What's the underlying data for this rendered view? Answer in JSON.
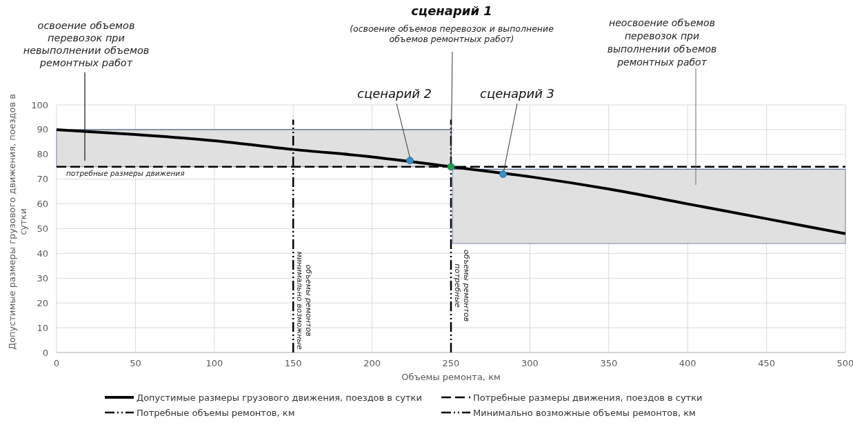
{
  "chart_data": {
    "type": "line",
    "xlabel": "Объемы ремонта, км",
    "ylabel": "Допустимые размеры грузового движения, поездов в сутки",
    "xlim": [
      0,
      500
    ],
    "xticks": [
      0,
      50,
      100,
      150,
      200,
      250,
      300,
      350,
      400,
      450,
      500
    ],
    "ylim": [
      0,
      100
    ],
    "yticks": [
      0,
      10,
      20,
      30,
      40,
      50,
      60,
      70,
      80,
      90,
      100
    ],
    "grid": true,
    "legend": "bottom",
    "marker": "none",
    "series": [
      {
        "color": "#5a6d94",
        "x": [
          0,
          250
        ],
        "values": [
          90,
          90
        ],
        "lower": [
          75,
          75
        ],
        "upper": [
          90,
          90
        ]
      },
      {
        "color": "#5a6d94",
        "x": [
          251,
          500
        ],
        "values": [
          74,
          74
        ],
        "lower": [
          44,
          44
        ],
        "upper": [
          74,
          74
        ]
      },
      {
        "name": "Допустимые размеры грузового движения, поездов в сутки",
        "color": "#000000",
        "line_style": "solid",
        "x": [
          0,
          50,
          100,
          150,
          200,
          250,
          300,
          350,
          400,
          450,
          500
        ],
        "values": [
          90,
          88,
          85.5,
          82,
          79,
          75,
          71,
          66,
          60,
          54,
          48
        ]
      },
      {
        "name": "Потребные размеры движения, поездов в сутки",
        "color": "#000000",
        "line_style": "dashed",
        "x": [
          0,
          500
        ],
        "values": [
          75,
          75
        ]
      },
      {
        "name": "Потребные объемы ремонтов, км",
        "color": "#000000",
        "line_style": "dotted",
        "x": [
          250,
          250
        ],
        "values": [
          0,
          94
        ]
      },
      {
        "name": "Минимально возможные объемы ремонтов, км",
        "color": "#000000",
        "line_style": "dotted",
        "x": [
          150,
          150
        ],
        "values": [
          0,
          94
        ]
      },
      {
        "type": "scatter",
        "marker": "circle",
        "x": [
          224,
          250,
          283
        ],
        "values": [
          77.5,
          75,
          72
        ],
        "colors": [
          "#3d8fc6",
          "#1aa34a",
          "#3d8fc6"
        ]
      }
    ],
    "annotations": [
      "сценарий 1",
      {
        "text": "(освоение объемов перевозок и выполнение\nобъемов ремонтных работ)",
        "x": 250,
        "y": 75
      },
      {
        "text": "сценарий 2",
        "x": 224,
        "y": 77.5
      },
      {
        "text": "сценарий 3",
        "x": 283,
        "y": 72
      },
      "освоение объемов\nперевозок при\nневыполнении объемов\nремонтных работ",
      "неосвоение объемов\nперевозок при\nвыполнении объемов\nремонтных работ",
      {
        "text": "потребные размеры движения",
        "x": 0,
        "y": 75
      },
      {
        "text": "минимально возможные\nобъемы ремонтов",
        "x": 150,
        "y": 21
      },
      {
        "text": "потребные\nобъемы ремонтов",
        "x": 250,
        "y": 27
      }
    ]
  }
}
